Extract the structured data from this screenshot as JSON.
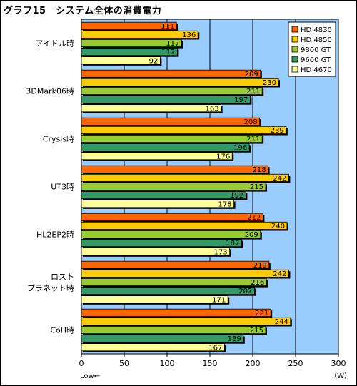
{
  "title": "グラフ15　システム全体の消費電力",
  "chart_data": {
    "type": "bar",
    "orientation": "horizontal",
    "title": "グラフ15　システム全体の消費電力",
    "categories": [
      [
        "アイドル時"
      ],
      [
        "3DMark06時"
      ],
      [
        "Crysis時"
      ],
      [
        "UT3時"
      ],
      [
        "HL2EP2時"
      ],
      [
        "ロスト",
        "プラネット時"
      ],
      [
        "CoH時"
      ]
    ],
    "series": [
      {
        "name": "HD 4830",
        "color": "#ff6600",
        "values": [
          111,
          209,
          208,
          218,
          212,
          219,
          221
        ]
      },
      {
        "name": "HD 4850",
        "color": "#ffcc00",
        "values": [
          136,
          230,
          239,
          242,
          240,
          242,
          244
        ]
      },
      {
        "name": "9800 GT",
        "color": "#99cc33",
        "values": [
          117,
          211,
          211,
          215,
          209,
          216,
          215
        ]
      },
      {
        "name": "9600 GT",
        "color": "#339966",
        "values": [
          112,
          197,
          196,
          192,
          187,
          202,
          189
        ]
      },
      {
        "name": "HD 4670",
        "color": "#ffff99",
        "values": [
          92,
          163,
          176,
          178,
          173,
          171,
          167
        ]
      }
    ],
    "xlim": [
      0,
      300
    ],
    "xticks": [
      0,
      50,
      100,
      150,
      200,
      250,
      300
    ],
    "xlabel_left": "Low←",
    "xlabel_right": "（W）",
    "grid": true,
    "legend_position": "top-right",
    "plot_background": "#99ccff"
  }
}
